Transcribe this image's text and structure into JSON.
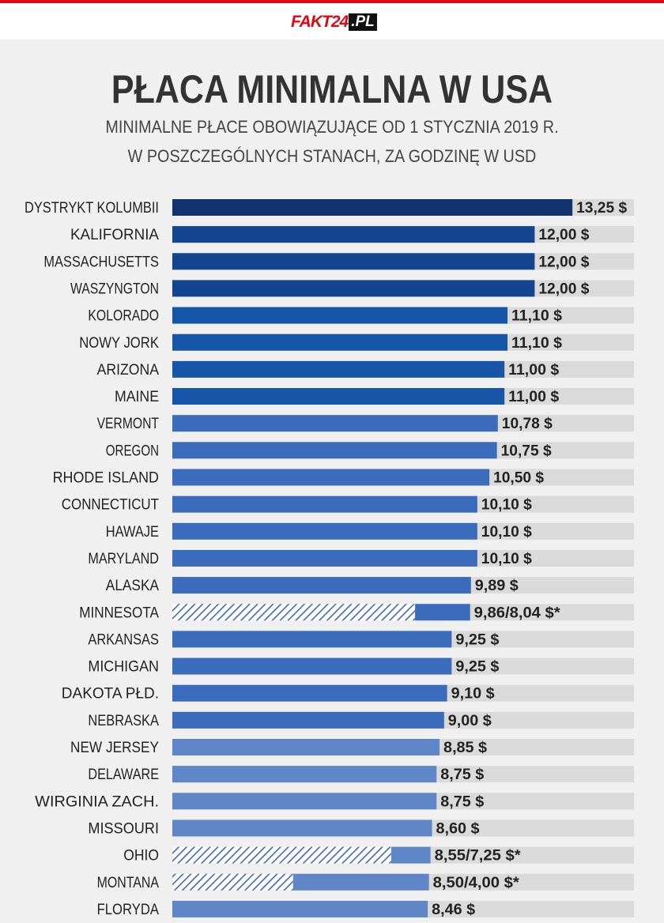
{
  "brand": {
    "name": "FAKT24",
    "suffix": ".PL",
    "accent": "#e30613"
  },
  "header": {
    "title": "PŁACA MINIMALNA W USA",
    "subtitle_line1": "MINIMALNE PŁACE OBOWIĄZUJĄCE OD 1 STYCZNIA 2019 R.",
    "subtitle_line2": "W POSZCZEGÓLNYCH STANACH, ZA GODZINĘ W USD"
  },
  "chart_data": {
    "type": "bar",
    "orientation": "horizontal",
    "title": "PŁACA MINIMALNA W USA",
    "unit": "USD/h",
    "xlim": [
      0,
      14.7
    ],
    "categories": [
      "DYSTRYKT KOLUMBII",
      "KALIFORNIA",
      "MASSACHUSETTS",
      "WASZYNGTON",
      "KOLORADO",
      "NOWY JORK",
      "ARIZONA",
      "MAINE",
      "VERMONT",
      "OREGON",
      "RHODE ISLAND",
      "CONNECTICUT",
      "HAWAJE",
      "MARYLAND",
      "ALASKA",
      "MINNESOTA",
      "ARKANSAS",
      "MICHIGAN",
      "DAKOTA PŁD.",
      "NEBRASKA",
      "NEW JERSEY",
      "DELAWARE",
      "WIRGINIA ZACH.",
      "MISSOURI",
      "OHIO",
      "MONTANA",
      "FLORYDA"
    ],
    "values": [
      13.25,
      12.0,
      12.0,
      12.0,
      11.1,
      11.1,
      11.0,
      11.0,
      10.78,
      10.75,
      10.5,
      10.1,
      10.1,
      10.1,
      9.89,
      9.86,
      9.25,
      9.25,
      9.1,
      9.0,
      8.85,
      8.75,
      8.75,
      8.6,
      8.55,
      8.5,
      8.46
    ],
    "secondary_values": [
      null,
      null,
      null,
      null,
      null,
      null,
      null,
      null,
      null,
      null,
      null,
      null,
      null,
      null,
      null,
      8.04,
      null,
      null,
      null,
      null,
      null,
      null,
      null,
      null,
      7.25,
      4.0,
      null
    ],
    "value_labels": [
      "13,25 $",
      "12,00 $",
      "12,00 $",
      "12,00 $",
      "11,10 $",
      "11,10 $",
      "11,00 $",
      "11,00 $",
      "10,78 $",
      "10,75 $",
      "10,50 $",
      "10,10 $",
      "10,10 $",
      "10,10 $",
      "9,89 $",
      "9,86/8,04 $*",
      "9,25 $",
      "9,25 $",
      "9,10 $",
      "9,00 $",
      "8,85 $",
      "8,75 $",
      "8,75 $",
      "8,60 $",
      "8,55/7,25 $*",
      "8,50/4,00 $*",
      "8,46 $"
    ],
    "colors": {
      "top": "#12336e",
      "tier1": "#12448f",
      "tier2": "#1655a8",
      "tier3": "#3b6bbb",
      "tier4": "#5f87c8",
      "track": "#dadada"
    }
  }
}
